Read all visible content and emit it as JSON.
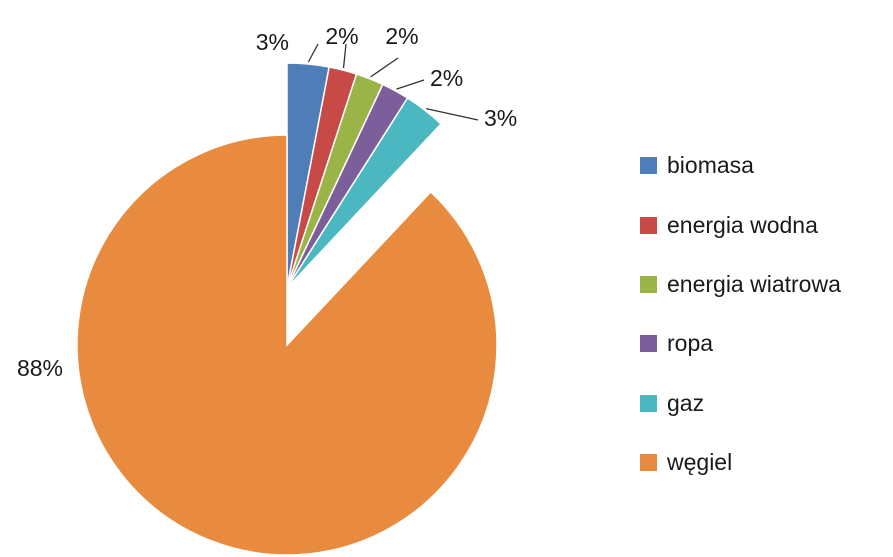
{
  "chart_data": {
    "type": "pie",
    "title": "",
    "exploded": true,
    "start": "top, clockwise",
    "legend_position": "right",
    "slices": [
      {
        "label": "biomasa",
        "value": 3,
        "display": "3%",
        "color": "#4f7db8"
      },
      {
        "label": "energia wodna",
        "value": 2,
        "display": "2%",
        "color": "#c84a47"
      },
      {
        "label": "energia wiatrowa",
        "value": 2,
        "display": "2%",
        "color": "#9bb447"
      },
      {
        "label": "ropa",
        "value": 2,
        "display": "2%",
        "color": "#7c5f9a"
      },
      {
        "label": "gaz",
        "value": 3,
        "display": "3%",
        "color": "#4bb8c1"
      },
      {
        "label": "węgiel",
        "value": 88,
        "display": "88%",
        "color": "#e88b3e"
      }
    ]
  }
}
